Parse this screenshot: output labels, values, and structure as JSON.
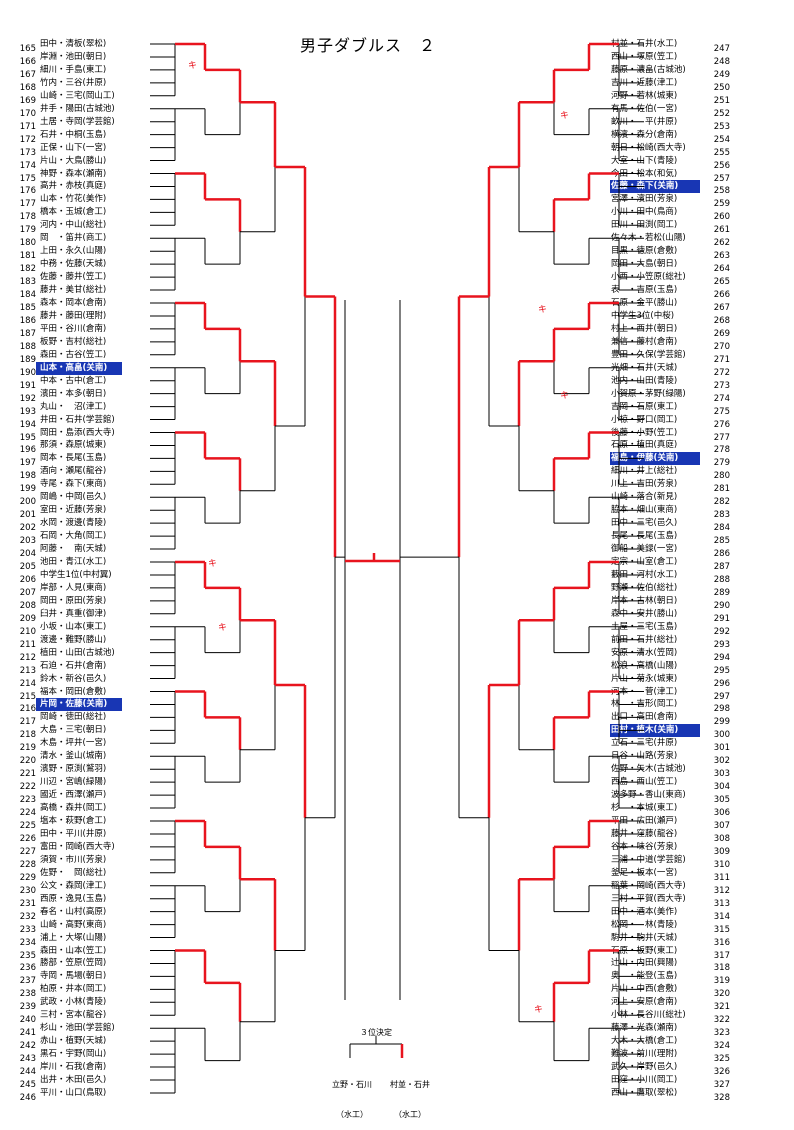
{
  "title": "男子ダブルス　２",
  "third_place": {
    "label": "３位決定",
    "team_a": {
      "names": "立野・石川",
      "school": "（水工）"
    },
    "team_b": {
      "names": "村並・石井",
      "school": "（水工）"
    }
  },
  "bye_mark": "キ",
  "left_entries": [
    {
      "no": "165",
      "name": "田中・清板(翠松)"
    },
    {
      "no": "166",
      "name": "岸淵・池田(朝日)"
    },
    {
      "no": "167",
      "name": "細川・手島(東工)"
    },
    {
      "no": "168",
      "name": "竹内・三谷(井原)"
    },
    {
      "no": "169",
      "name": "山崎・三宅(岡山工)"
    },
    {
      "no": "170",
      "name": "井手・陽田(古城池)"
    },
    {
      "no": "171",
      "name": "土居・寺岡(学芸館)"
    },
    {
      "no": "172",
      "name": "石井・中桐(玉島)"
    },
    {
      "no": "173",
      "name": "正保・山下(一宮)"
    },
    {
      "no": "174",
      "name": "片山・大鳥(勝山)"
    },
    {
      "no": "175",
      "name": "神野・森本(瀬南)"
    },
    {
      "no": "176",
      "name": "高井・赤枝(真庭)"
    },
    {
      "no": "177",
      "name": "山本・竹花(美作)"
    },
    {
      "no": "178",
      "name": "橋本・玉城(倉工)"
    },
    {
      "no": "179",
      "name": "河内・中山(総社)"
    },
    {
      "no": "180",
      "name": "岡　・笛井(商工)"
    },
    {
      "no": "181",
      "name": "上田・永久(山陽)"
    },
    {
      "no": "182",
      "name": "中務・佐藤(天城)"
    },
    {
      "no": "183",
      "name": "佐藤・藤井(笠工)"
    },
    {
      "no": "184",
      "name": "藤井・美甘(総社)"
    },
    {
      "no": "185",
      "name": "森本・岡本(倉南)"
    },
    {
      "no": "186",
      "name": "藤井・藤田(理附)"
    },
    {
      "no": "187",
      "name": "平田・谷川(倉南)"
    },
    {
      "no": "188",
      "name": "板野・吉村(総社)"
    },
    {
      "no": "189",
      "name": "森田・古谷(笠工)"
    },
    {
      "no": "190",
      "name": "山本・高畠(关南)",
      "seed": true
    },
    {
      "no": "191",
      "name": "中本・古中(倉工)"
    },
    {
      "no": "192",
      "name": "濱田・本多(朝日)"
    },
    {
      "no": "193",
      "name": "丸山・　沼(津工)"
    },
    {
      "no": "194",
      "name": "井田・石井(学芸館)"
    },
    {
      "no": "195",
      "name": "岡田・島添(西大寺)"
    },
    {
      "no": "196",
      "name": "那須・森原(城東)"
    },
    {
      "no": "197",
      "name": "岡本・長尾(玉島)"
    },
    {
      "no": "198",
      "name": "酒向・瀬尾(龍谷)"
    },
    {
      "no": "199",
      "name": "寺尾・森下(東商)"
    },
    {
      "no": "200",
      "name": "岡嶋・中岡(邑久)"
    },
    {
      "no": "201",
      "name": "室田・近藤(芳泉)"
    },
    {
      "no": "202",
      "name": "水岡・渡邊(青陵)"
    },
    {
      "no": "203",
      "name": "石岡・大角(岡工)"
    },
    {
      "no": "204",
      "name": "阿藤・　南(天城)"
    },
    {
      "no": "205",
      "name": "池田・青江(水工)"
    },
    {
      "no": "206",
      "name": "中学生1位(中村翼)"
    },
    {
      "no": "207",
      "name": "岸部・人見(東商)"
    },
    {
      "no": "208",
      "name": "岡田・原田(芳泉)"
    },
    {
      "no": "209",
      "name": "臼井・真重(御津)"
    },
    {
      "no": "210",
      "name": "小坂・山本(東工)"
    },
    {
      "no": "211",
      "name": "渡邊・難野(勝山)"
    },
    {
      "no": "212",
      "name": "植田・山田(古城池)"
    },
    {
      "no": "213",
      "name": "石迫・石井(倉南)"
    },
    {
      "no": "214",
      "name": "鈴木・新谷(邑久)"
    },
    {
      "no": "215",
      "name": "福本・岡田(倉敷)"
    },
    {
      "no": "216",
      "name": "片岡・佐藤(关南)",
      "seed": true
    },
    {
      "no": "217",
      "name": "岡崎・徳田(総社)"
    },
    {
      "no": "218",
      "name": "大島・三宅(朝日)"
    },
    {
      "no": "219",
      "name": "木島・坪井(一宮)"
    },
    {
      "no": "220",
      "name": "清水・釜山(城南)"
    },
    {
      "no": "221",
      "name": "濱野・原渕(鷲羽)"
    },
    {
      "no": "222",
      "name": "川辺・宮嶋(緑陽)"
    },
    {
      "no": "223",
      "name": "國近・西澤(瀬戸)"
    },
    {
      "no": "224",
      "name": "高橋・森井(岡工)"
    },
    {
      "no": "225",
      "name": "塩本・萩野(倉工)"
    },
    {
      "no": "226",
      "name": "田中・平川(井原)"
    },
    {
      "no": "227",
      "name": "富田・岡崎(西大寺)"
    },
    {
      "no": "228",
      "name": "須賀・市川(芳泉)"
    },
    {
      "no": "229",
      "name": "佐野・　岡(総社)"
    },
    {
      "no": "230",
      "name": "公文・森岡(津工)"
    },
    {
      "no": "231",
      "name": "西原・逸見(玉島)"
    },
    {
      "no": "232",
      "name": "春名・山村(高原)"
    },
    {
      "no": "233",
      "name": "山崎・高野(東商)"
    },
    {
      "no": "234",
      "name": "浦上・大塚(山陽)"
    },
    {
      "no": "235",
      "name": "森田・山本(笠工)"
    },
    {
      "no": "236",
      "name": "勝部・笠原(笠岡)"
    },
    {
      "no": "237",
      "name": "寺岡・馬場(朝日)"
    },
    {
      "no": "238",
      "name": "柏原・井本(岡工)"
    },
    {
      "no": "239",
      "name": "武政・小林(青陵)"
    },
    {
      "no": "240",
      "name": "三村・宮本(龍谷)"
    },
    {
      "no": "241",
      "name": "杉山・池田(学芸館)"
    },
    {
      "no": "242",
      "name": "赤山・植野(天城)"
    },
    {
      "no": "243",
      "name": "黒石・宇野(岡山)"
    },
    {
      "no": "244",
      "name": "岸川・石我(倉南)"
    },
    {
      "no": "245",
      "name": "出井・木田(邑久)"
    },
    {
      "no": "246",
      "name": "平川・山口(鳥取)"
    }
  ],
  "right_entries": [
    {
      "no": "247",
      "name": "村並・石井(水工)"
    },
    {
      "no": "248",
      "name": "西山・塚原(笠工)"
    },
    {
      "no": "249",
      "name": "藤原・濃畠(古城池)"
    },
    {
      "no": "250",
      "name": "吉川・近藤(津工)"
    },
    {
      "no": "251",
      "name": "河野・若林(城東)"
    },
    {
      "no": "252",
      "name": "有馬・佐伯(一宮)"
    },
    {
      "no": "253",
      "name": "畝川・　平(井原)"
    },
    {
      "no": "254",
      "name": "横濱・森分(倉南)"
    },
    {
      "no": "255",
      "name": "朝日・松崎(西大寺)"
    },
    {
      "no": "256",
      "name": "大室・山下(青陵)"
    },
    {
      "no": "257",
      "name": "今田・松本(和気)"
    },
    {
      "no": "258",
      "name": "佐藤・森下(关南)",
      "seed": true
    },
    {
      "no": "259",
      "name": "宮澤・濱田(芳泉)"
    },
    {
      "no": "260",
      "name": "小川・田中(鳥商)"
    },
    {
      "no": "261",
      "name": "田川・田渕(岡工)"
    },
    {
      "no": "262",
      "name": "佐々木・若松(山陽)"
    },
    {
      "no": "263",
      "name": "目黒・徳原(倉敷)"
    },
    {
      "no": "264",
      "name": "岡田・大島(朝日)"
    },
    {
      "no": "265",
      "name": "小西・小笠原(総社)"
    },
    {
      "no": "266",
      "name": "表　・吉原(玉島)"
    },
    {
      "no": "267",
      "name": "石原・金平(勝山)"
    },
    {
      "no": "268",
      "name": "中学生3位(中桜)"
    },
    {
      "no": "269",
      "name": "村上・西井(朝日)"
    },
    {
      "no": "270",
      "name": "兼信・藤村(倉南)"
    },
    {
      "no": "271",
      "name": "豊田・久保(学芸館)"
    },
    {
      "no": "272",
      "name": "光畑・石井(天城)"
    },
    {
      "no": "273",
      "name": "池内・山田(青陵)"
    },
    {
      "no": "274",
      "name": "小賀原・茅野(緑陽)"
    },
    {
      "no": "275",
      "name": "吉岡・石原(東工)"
    },
    {
      "no": "276",
      "name": "小椋・野口(岡工)"
    },
    {
      "no": "277",
      "name": "後藤・小野(笠工)"
    },
    {
      "no": "278",
      "name": "石原・植田(真庭)"
    },
    {
      "no": "279",
      "name": "福島・伊藤(关南)",
      "seed": true
    },
    {
      "no": "280",
      "name": "細川・井上(総社)"
    },
    {
      "no": "281",
      "name": "川上・吉田(芳泉)"
    },
    {
      "no": "282",
      "name": "山崎・落合(新見)"
    },
    {
      "no": "283",
      "name": "脇本・畑山(東商)"
    },
    {
      "no": "284",
      "name": "田中・三宅(邑久)"
    },
    {
      "no": "285",
      "name": "長尾・長尾(玉島)"
    },
    {
      "no": "286",
      "name": "御船・美録(一宮)"
    },
    {
      "no": "287",
      "name": "定宗・山室(倉工)"
    },
    {
      "no": "288",
      "name": "藪田・河村(水工)"
    },
    {
      "no": "289",
      "name": "野瀬・佐伯(総社)"
    },
    {
      "no": "290",
      "name": "岸本・古林(朝日)"
    },
    {
      "no": "291",
      "name": "森中・安井(勝山)"
    },
    {
      "no": "292",
      "name": "土屋・三宅(玉島)"
    },
    {
      "no": "293",
      "name": "前田・石井(総社)"
    },
    {
      "no": "294",
      "name": "安原・清水(笠岡)"
    },
    {
      "no": "295",
      "name": "松浪・高橋(山陽)"
    },
    {
      "no": "296",
      "name": "片山・菊永(城東)"
    },
    {
      "no": "297",
      "name": "河本・　菅(津工)"
    },
    {
      "no": "298",
      "name": "林　・吉形(岡工)"
    },
    {
      "no": "299",
      "name": "出口・高田(倉南)"
    },
    {
      "no": "300",
      "name": "田村・植木(关南)",
      "seed": true
    },
    {
      "no": "301",
      "name": "立石・三宅(井原)"
    },
    {
      "no": "302",
      "name": "日谷・山路(芳泉)"
    },
    {
      "no": "303",
      "name": "佐野・矢木(古城池)"
    },
    {
      "no": "304",
      "name": "西島・西山(笠工)"
    },
    {
      "no": "305",
      "name": "波多野・香山(東商)"
    },
    {
      "no": "306",
      "name": "杉　・本城(東工)"
    },
    {
      "no": "307",
      "name": "平田・広田(瀬戸)"
    },
    {
      "no": "308",
      "name": "藤井・窪藤(龍谷)"
    },
    {
      "no": "309",
      "name": "谷本・味谷(芳泉)"
    },
    {
      "no": "310",
      "name": "三浦・中道(学芸館)"
    },
    {
      "no": "311",
      "name": "釜足・板本(一宮)"
    },
    {
      "no": "312",
      "name": "稲葉・岡崎(西大寺)"
    },
    {
      "no": "313",
      "name": "三村・平賀(西大寺)"
    },
    {
      "no": "314",
      "name": "田中・酒本(美作)"
    },
    {
      "no": "315",
      "name": "松岡・　林(青陵)"
    },
    {
      "no": "316",
      "name": "駒井・駒井(天城)"
    },
    {
      "no": "317",
      "name": "石原・板野(東工)"
    },
    {
      "no": "318",
      "name": "辻山・内田(興陽)"
    },
    {
      "no": "319",
      "name": "奥　・能登(玉島)"
    },
    {
      "no": "320",
      "name": "片山・中西(倉敷)"
    },
    {
      "no": "321",
      "name": "河上・安原(倉南)"
    },
    {
      "no": "322",
      "name": "小林・長谷川(総社)"
    },
    {
      "no": "323",
      "name": "藤澤・光森(瀬南)"
    },
    {
      "no": "324",
      "name": "大木・大橋(倉工)"
    },
    {
      "no": "325",
      "name": "難波・前川(理附)"
    },
    {
      "no": "326",
      "name": "武久・岸野(邑久)"
    },
    {
      "no": "327",
      "name": "田窪・小川(岡工)"
    },
    {
      "no": "328",
      "name": "西山・鷹取(翠松)"
    }
  ]
}
